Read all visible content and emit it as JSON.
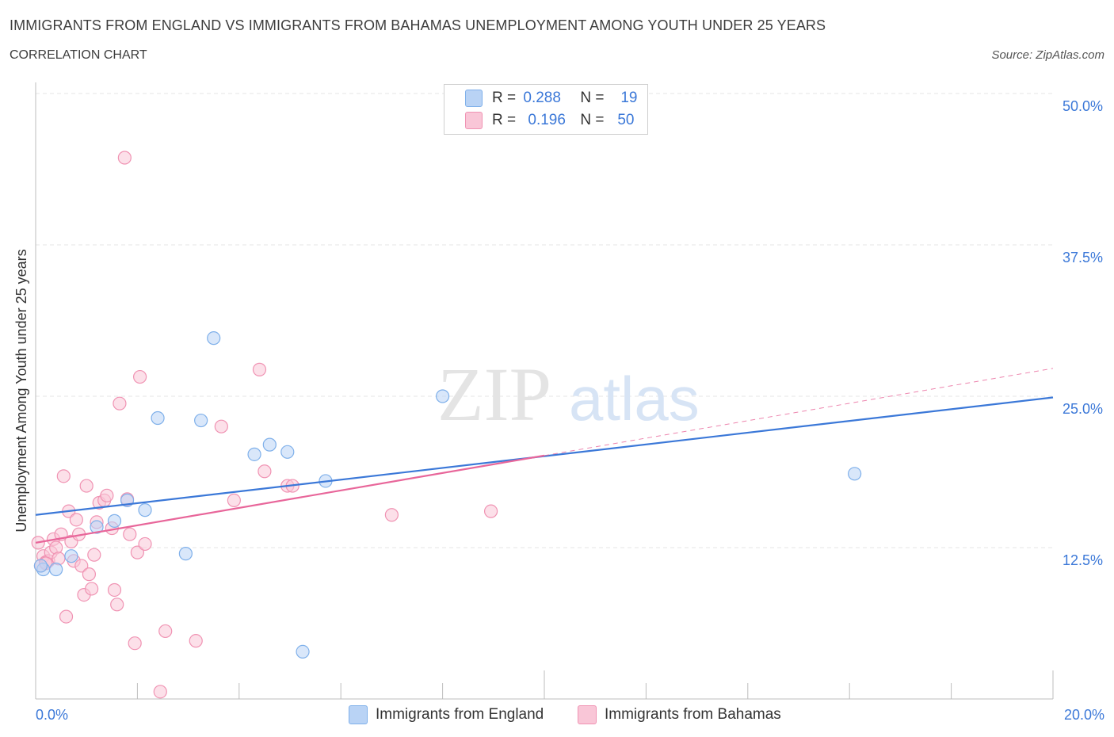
{
  "title": "IMMIGRANTS FROM ENGLAND VS IMMIGRANTS FROM BAHAMAS UNEMPLOYMENT AMONG YOUTH UNDER 25 YEARS",
  "subtitle": "CORRELATION CHART",
  "source": "Source: ZipAtlas.com",
  "watermark": {
    "zip": "ZIP",
    "atlas": "atlas"
  },
  "legend": {
    "rows": [
      {
        "r_label": "R =",
        "r_value": "0.288",
        "n_label": "N =",
        "n_value": "19",
        "color": "#7fb0ea",
        "fill": "#b9d3f5"
      },
      {
        "r_label": "R =",
        "r_value": "0.196",
        "n_label": "N =",
        "n_value": "50",
        "color": "#f093b3",
        "fill": "#f9c6d7"
      }
    ]
  },
  "chart_data": {
    "type": "scatter",
    "title": "IMMIGRANTS FROM ENGLAND VS IMMIGRANTS FROM BAHAMAS UNEMPLOYMENT AMONG YOUTH UNDER 25 YEARS",
    "xlabel": "",
    "ylabel": "Unemployment Among Youth under 25 years",
    "xlim": [
      0,
      20
    ],
    "ylim": [
      0,
      50
    ],
    "x_tick_labels": [
      "0.0%",
      "20.0%"
    ],
    "y_tick_labels": [
      "12.5%",
      "25.0%",
      "37.5%",
      "50.0%"
    ],
    "y_ticks": [
      12.5,
      25,
      37.5,
      50
    ],
    "series": [
      {
        "name": "Immigrants from England",
        "color": "#3b78d8",
        "fill": "#b9d3f5",
        "stroke": "#7fb0ea",
        "points": [
          [
            0.15,
            10.7
          ],
          [
            0.4,
            10.7
          ],
          [
            0.7,
            11.8
          ],
          [
            1.2,
            14.2
          ],
          [
            1.55,
            14.7
          ],
          [
            1.8,
            16.4
          ],
          [
            2.15,
            15.6
          ],
          [
            2.4,
            23.2
          ],
          [
            2.95,
            12.0
          ],
          [
            3.25,
            23.0
          ],
          [
            3.5,
            29.8
          ],
          [
            4.3,
            20.2
          ],
          [
            4.6,
            21.0
          ],
          [
            4.95,
            20.4
          ],
          [
            5.25,
            3.9
          ],
          [
            5.7,
            18.0
          ],
          [
            8.0,
            25.0
          ],
          [
            16.1,
            18.6
          ],
          [
            0.1,
            11.0
          ]
        ],
        "trend": {
          "x": [
            0,
            20
          ],
          "y": [
            15.2,
            24.9
          ],
          "dash_from": null
        }
      },
      {
        "name": "Immigrants from Bahamas",
        "color": "#e8669a",
        "fill": "#f9c6d7",
        "stroke": "#f093b3",
        "points": [
          [
            0.05,
            12.9
          ],
          [
            0.1,
            11.0
          ],
          [
            0.15,
            11.8
          ],
          [
            0.2,
            11.3
          ],
          [
            0.25,
            11.4
          ],
          [
            0.3,
            12.1
          ],
          [
            0.35,
            13.2
          ],
          [
            0.4,
            12.5
          ],
          [
            0.45,
            11.6
          ],
          [
            0.5,
            13.6
          ],
          [
            0.55,
            18.4
          ],
          [
            0.6,
            6.8
          ],
          [
            0.65,
            15.5
          ],
          [
            0.7,
            13.0
          ],
          [
            0.75,
            11.4
          ],
          [
            0.8,
            14.8
          ],
          [
            0.85,
            13.6
          ],
          [
            0.9,
            11.0
          ],
          [
            0.95,
            8.6
          ],
          [
            1.0,
            17.6
          ],
          [
            1.05,
            10.3
          ],
          [
            1.1,
            9.1
          ],
          [
            1.15,
            11.9
          ],
          [
            1.2,
            14.6
          ],
          [
            1.25,
            16.2
          ],
          [
            1.35,
            16.4
          ],
          [
            1.4,
            16.8
          ],
          [
            1.5,
            14.1
          ],
          [
            1.6,
            7.8
          ],
          [
            1.55,
            9.0
          ],
          [
            1.65,
            24.4
          ],
          [
            1.75,
            44.7
          ],
          [
            1.8,
            16.5
          ],
          [
            1.85,
            13.6
          ],
          [
            1.95,
            4.6
          ],
          [
            2.05,
            26.6
          ],
          [
            2.0,
            12.1
          ],
          [
            2.15,
            12.8
          ],
          [
            2.45,
            0.6
          ],
          [
            2.55,
            5.6
          ],
          [
            3.15,
            4.8
          ],
          [
            3.65,
            22.5
          ],
          [
            3.9,
            16.4
          ],
          [
            4.4,
            27.2
          ],
          [
            4.5,
            18.8
          ],
          [
            4.95,
            17.6
          ],
          [
            5.05,
            17.6
          ],
          [
            7.0,
            15.2
          ],
          [
            8.95,
            15.5
          ],
          [
            0.2,
            11.2
          ]
        ],
        "trend": {
          "x": [
            0,
            20
          ],
          "y": [
            12.9,
            27.3
          ],
          "dash_from": 10.0
        }
      }
    ]
  },
  "bottom_legend": [
    {
      "label": "Immigrants from England",
      "stroke": "#7fb0ea",
      "fill": "#b9d3f5"
    },
    {
      "label": "Immigrants from Bahamas",
      "stroke": "#f093b3",
      "fill": "#f9c6d7"
    }
  ]
}
